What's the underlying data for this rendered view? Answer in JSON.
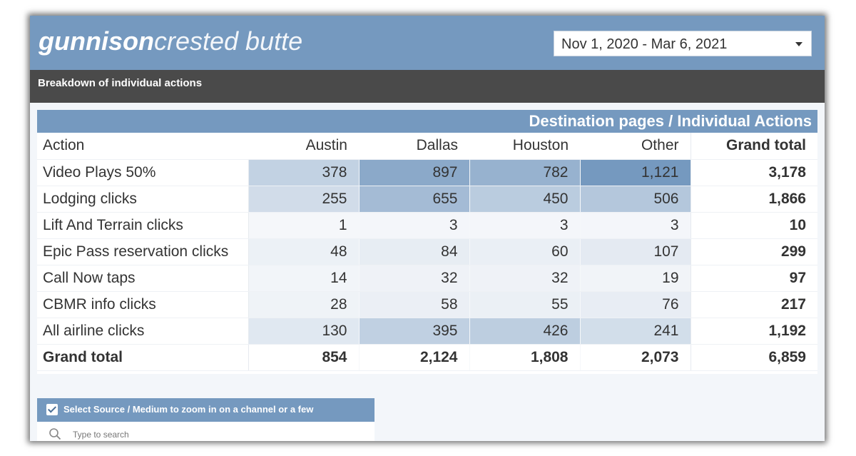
{
  "header": {
    "logo_bold": "gunnison",
    "logo_light": "crested butte",
    "date_range": "Nov 1, 2020 - Mar 6, 2021"
  },
  "subheader": {
    "title": "Breakdown of individual actions"
  },
  "table": {
    "title": "Destination pages / Individual Actions",
    "columns": [
      "Action",
      "Austin",
      "Dallas",
      "Houston",
      "Other",
      "Grand total"
    ],
    "rows": [
      {
        "action": "Video Plays 50%",
        "values": [
          "378",
          "897",
          "782",
          "1,121"
        ],
        "total": "3,178"
      },
      {
        "action": "Lodging clicks",
        "values": [
          "255",
          "655",
          "450",
          "506"
        ],
        "total": "1,866"
      },
      {
        "action": "Lift And Terrain clicks",
        "values": [
          "1",
          "3",
          "3",
          "3"
        ],
        "total": "10"
      },
      {
        "action": "Epic Pass reservation clicks",
        "values": [
          "48",
          "84",
          "60",
          "107"
        ],
        "total": "299"
      },
      {
        "action": "Call Now taps",
        "values": [
          "14",
          "32",
          "32",
          "19"
        ],
        "total": "97"
      },
      {
        "action": "CBMR info clicks",
        "values": [
          "28",
          "58",
          "55",
          "76"
        ],
        "total": "217"
      },
      {
        "action": "All airline clicks",
        "values": [
          "130",
          "395",
          "426",
          "241"
        ],
        "total": "1,192"
      }
    ],
    "grand_total": {
      "label": "Grand total",
      "values": [
        "854",
        "2,124",
        "1,808",
        "2,073"
      ],
      "total": "6,859"
    },
    "heatmap_colors": {
      "low": "#f5f7fa",
      "high": "#7599bf"
    }
  },
  "filter": {
    "title": "Select Source / Medium to zoom in on a channel or a few",
    "search_placeholder": "Type to search",
    "checked": true
  },
  "colors": {
    "accent": "#7599bf",
    "dark_bar": "#4a4a4a",
    "background": "#f3f6fa"
  }
}
